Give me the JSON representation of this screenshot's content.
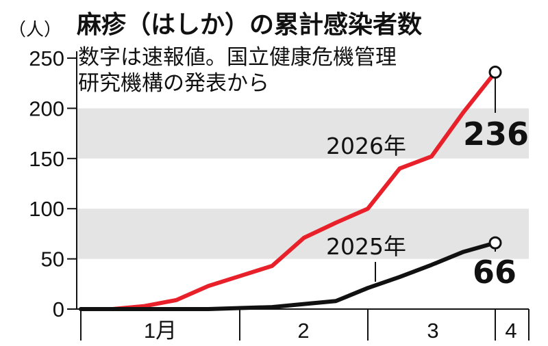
{
  "chart_data": {
    "type": "line",
    "title": "麻疹（はしか）の累計感染者数",
    "subtitle_lines": [
      "数字は速報値。国立健康危機管理",
      "研究機構の発表から"
    ],
    "ylabel": "（人）",
    "ylim": [
      0,
      250
    ],
    "yticks": [
      "0",
      "50",
      "100",
      "150",
      "200",
      "250"
    ],
    "month_labels": [
      "1月",
      "2",
      "3",
      "4"
    ],
    "x": [
      0,
      1,
      2,
      3,
      4,
      5,
      6,
      7,
      8,
      9,
      10,
      11,
      12,
      13
    ],
    "series": [
      {
        "name": "2026年",
        "color": "#e8202a",
        "values": [
          0,
          0,
          3,
          9,
          23,
          33,
          43,
          71,
          86,
          100,
          140,
          152,
          196,
          236
        ],
        "end_label": "236"
      },
      {
        "name": "2025年",
        "color": "#111111",
        "values": [
          0,
          0,
          0,
          0,
          0,
          1,
          2,
          5,
          8,
          21,
          32,
          44,
          57,
          66
        ],
        "end_label": "66"
      }
    ],
    "grid": "alternating gray bands",
    "colors": {
      "band": "#e4e4e4",
      "axis": "#111111"
    }
  }
}
